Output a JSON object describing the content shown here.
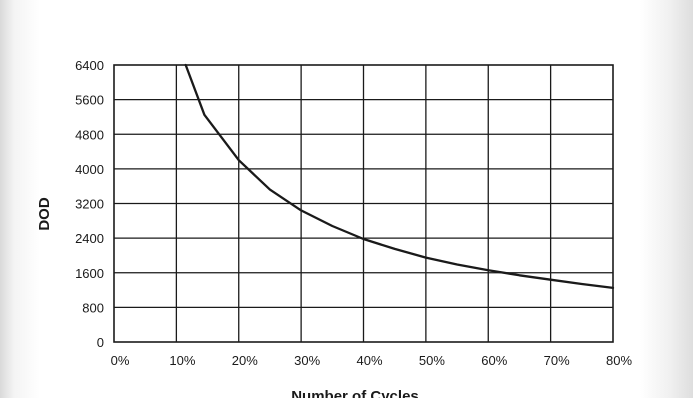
{
  "chart_data": {
    "type": "line",
    "title": "",
    "xlabel": "Number of Cycles",
    "ylabel": "DOD",
    "x_ticks": [
      "0%",
      "10%",
      "20%",
      "30%",
      "40%",
      "50%",
      "60%",
      "70%",
      "80%"
    ],
    "y_ticks": [
      "6400",
      "5600",
      "4800",
      "4000",
      "3200",
      "2400",
      "1600",
      "800",
      "0"
    ],
    "xlim": [
      0,
      80
    ],
    "ylim": [
      0,
      6400
    ],
    "grid": true,
    "series": [
      {
        "color": "#1a1a1a",
        "x": [
          11.5,
          14.5,
          20,
          25,
          30,
          35,
          40,
          45,
          50,
          55,
          60,
          65,
          70,
          75,
          80
        ],
        "y": [
          6400,
          5250,
          4200,
          3520,
          3040,
          2680,
          2380,
          2150,
          1950,
          1790,
          1660,
          1540,
          1440,
          1340,
          1250
        ]
      }
    ]
  }
}
